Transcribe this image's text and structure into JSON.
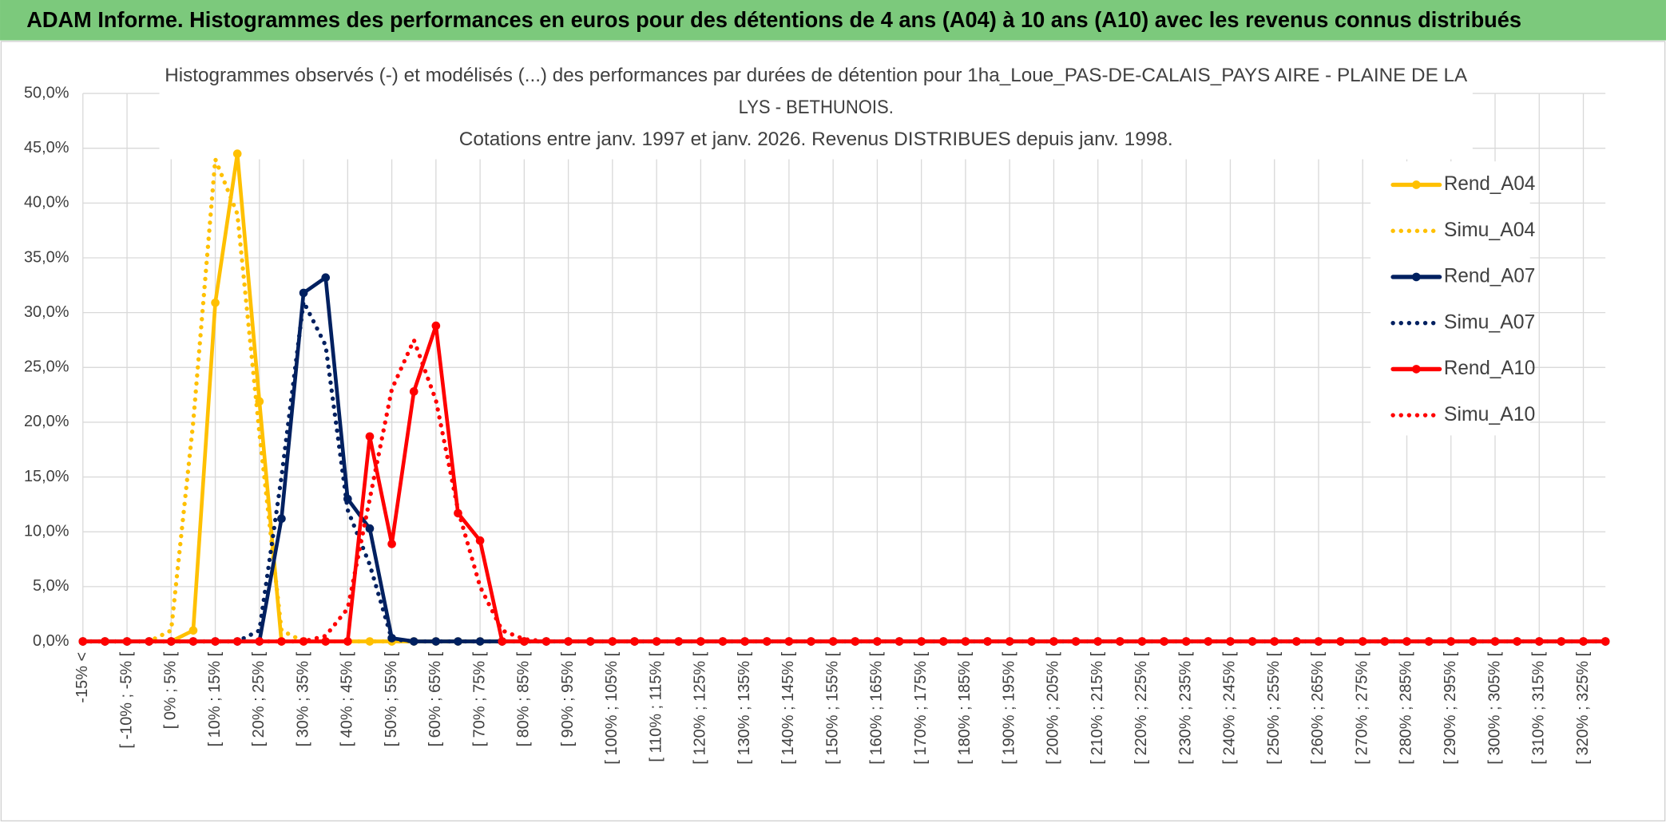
{
  "header": {
    "title": "ADAM Informe. Histogrammes des performances en euros pour des détentions de 4 ans (A04) à 10 ans (A10) avec les revenus connus distribués"
  },
  "chart_data": {
    "type": "line",
    "title": [
      "Histogrammes observés (-) et modélisés (...) des performances par durées de détention pour 1ha_Loue_PAS-DE-CALAIS_PAYS AIRE - PLAINE DE LA",
      "LYS - BETHUNOIS."
    ],
    "subtitle": "Cotations entre janv. 1997 et janv. 2026. Revenus DISTRIBUES depuis janv. 1998.",
    "categories": [
      "-15% <",
      null,
      "[ -10% ; -5% [",
      null,
      "[ 0% ; 5% [",
      null,
      "[ 10% ; 15% [",
      null,
      "[ 20% ; 25% [",
      null,
      "[ 30% ; 35% [",
      null,
      "[ 40% ; 45% [",
      null,
      "[ 50% ; 55% [",
      null,
      "[ 60% ; 65% [",
      null,
      "[ 70% ; 75% [",
      null,
      "[ 80% ; 85% [",
      null,
      "[ 90% ; 95% [",
      null,
      "[ 100% ; 105% [",
      null,
      "[ 110% ; 115% [",
      null,
      "[ 120% ; 125% [",
      null,
      "[ 130% ; 135% [",
      null,
      "[ 140% ; 145% [",
      null,
      "[ 150% ; 155% [",
      null,
      "[ 160% ; 165% [",
      null,
      "[ 170% ; 175% [",
      null,
      "[ 180% ; 185% [",
      null,
      "[ 190% ; 195% [",
      null,
      "[ 200% ; 205% [",
      null,
      "[ 210% ; 215% [",
      null,
      "[ 220% ; 225% [",
      null,
      "[ 230% ; 235% [",
      null,
      "[ 240% ; 245% [",
      null,
      "[ 250% ; 255% [",
      null,
      "[ 260% ; 265% [",
      null,
      "[ 270% ; 275% [",
      null,
      "[ 280% ; 285% [",
      null,
      "[ 290% ; 295% [",
      null,
      "[ 300% ; 305% [",
      null,
      "[ 310% ; 315% [",
      null,
      "[ 320% ; 325% [",
      null
    ],
    "series": [
      {
        "name": "Rend_A04",
        "color": "#ffc000",
        "dash": "solid",
        "markers": true,
        "values": [
          0,
          0,
          0,
          0,
          0,
          1,
          30.9,
          44.5,
          21.9,
          0,
          0,
          0,
          0,
          0,
          0,
          0,
          0,
          0,
          0,
          0,
          0,
          0,
          0,
          0,
          0,
          0,
          0,
          0,
          0,
          0,
          0,
          0,
          0,
          0,
          0,
          0,
          0,
          0,
          0,
          0,
          0,
          0,
          0,
          0,
          0,
          0,
          0,
          0,
          0,
          0,
          0,
          0,
          0,
          0,
          0,
          0,
          0,
          0,
          0,
          0,
          0,
          0,
          0,
          0,
          0,
          0,
          0,
          0,
          0,
          0
        ]
      },
      {
        "name": "Simu_A04",
        "color": "#ffc000",
        "dash": "dotted",
        "markers": false,
        "values": [
          0,
          0,
          0,
          0,
          1,
          20,
          44,
          39,
          19,
          1,
          0,
          0,
          0,
          0,
          0,
          0,
          0,
          0,
          0,
          0,
          0,
          0,
          0,
          0,
          0,
          0,
          0,
          0,
          0,
          0,
          0,
          0,
          0,
          0,
          0,
          0,
          0,
          0,
          0,
          0,
          0,
          0,
          0,
          0,
          0,
          0,
          0,
          0,
          0,
          0,
          0,
          0,
          0,
          0,
          0,
          0,
          0,
          0,
          0,
          0,
          0,
          0,
          0,
          0,
          0,
          0,
          0,
          0,
          0,
          0
        ]
      },
      {
        "name": "Rend_A07",
        "color": "#002060",
        "dash": "solid",
        "markers": true,
        "values": [
          0,
          0,
          0,
          0,
          0,
          0,
          0,
          0,
          0,
          11.2,
          31.8,
          33.2,
          13,
          10.3,
          0.3,
          0,
          0,
          0,
          0,
          0,
          0,
          0,
          0,
          0,
          0,
          0,
          0,
          0,
          0,
          0,
          0,
          0,
          0,
          0,
          0,
          0,
          0,
          0,
          0,
          0,
          0,
          0,
          0,
          0,
          0,
          0,
          0,
          0,
          0,
          0,
          0,
          0,
          0,
          0,
          0,
          0,
          0,
          0,
          0,
          0,
          0,
          0,
          0,
          0,
          0,
          0,
          0,
          0,
          0,
          0
        ]
      },
      {
        "name": "Simu_A07",
        "color": "#002060",
        "dash": "dotted",
        "markers": false,
        "values": [
          0,
          0,
          0,
          0,
          0,
          0,
          0,
          0,
          1,
          15,
          31,
          27,
          12,
          7,
          0.2,
          0,
          0,
          0,
          0,
          0,
          0,
          0,
          0,
          0,
          0,
          0,
          0,
          0,
          0,
          0,
          0,
          0,
          0,
          0,
          0,
          0,
          0,
          0,
          0,
          0,
          0,
          0,
          0,
          0,
          0,
          0,
          0,
          0,
          0,
          0,
          0,
          0,
          0,
          0,
          0,
          0,
          0,
          0,
          0,
          0,
          0,
          0,
          0,
          0,
          0,
          0,
          0,
          0,
          0,
          0
        ]
      },
      {
        "name": "Rend_A10",
        "color": "#ff0000",
        "dash": "solid",
        "markers": true,
        "values": [
          0,
          0,
          0,
          0,
          0,
          0,
          0,
          0,
          0,
          0,
          0,
          0,
          0,
          18.7,
          8.9,
          22.8,
          28.8,
          11.7,
          9.2,
          0,
          0,
          0,
          0,
          0,
          0,
          0,
          0,
          0,
          0,
          0,
          0,
          0,
          0,
          0,
          0,
          0,
          0,
          0,
          0,
          0,
          0,
          0,
          0,
          0,
          0,
          0,
          0,
          0,
          0,
          0,
          0,
          0,
          0,
          0,
          0,
          0,
          0,
          0,
          0,
          0,
          0,
          0,
          0,
          0,
          0,
          0,
          0,
          0,
          0,
          0
        ]
      },
      {
        "name": "Simu_A10",
        "color": "#ff0000",
        "dash": "dotted",
        "markers": false,
        "values": [
          0,
          0,
          0,
          0,
          0,
          0,
          0,
          0,
          0,
          0,
          0,
          0.5,
          3,
          13,
          23,
          27.5,
          22,
          12,
          5,
          1,
          0.2,
          0,
          0,
          0,
          0,
          0,
          0,
          0,
          0,
          0,
          0,
          0,
          0,
          0,
          0,
          0,
          0,
          0,
          0,
          0,
          0,
          0,
          0,
          0,
          0,
          0,
          0,
          0,
          0,
          0,
          0,
          0,
          0,
          0,
          0,
          0,
          0,
          0,
          0,
          0,
          0,
          0,
          0,
          0,
          0,
          0,
          0,
          0,
          0,
          0
        ]
      }
    ],
    "ylim": [
      0,
      50
    ],
    "yticks": [
      {
        "value": 0,
        "label": "0,0%"
      },
      {
        "value": 5,
        "label": "5,0%"
      },
      {
        "value": 10,
        "label": "10,0%"
      },
      {
        "value": 15,
        "label": "15,0%"
      },
      {
        "value": 20,
        "label": "20,0%"
      },
      {
        "value": 25,
        "label": "25,0%"
      },
      {
        "value": 30,
        "label": "30,0%"
      },
      {
        "value": 35,
        "label": "35,0%"
      },
      {
        "value": 40,
        "label": "40,0%"
      },
      {
        "value": 45,
        "label": "45,0%"
      },
      {
        "value": 50,
        "label": "50,0%"
      }
    ],
    "grid": true,
    "legend": "right"
  }
}
